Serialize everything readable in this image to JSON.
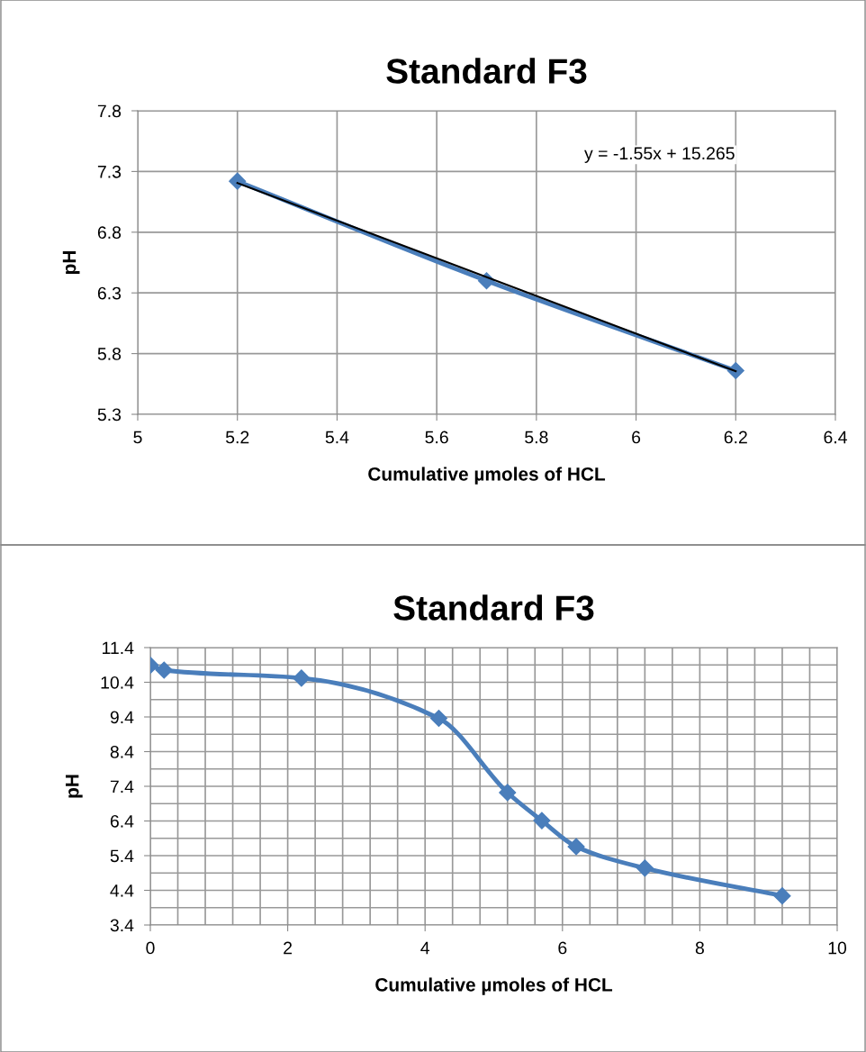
{
  "chart_data": [
    {
      "type": "line",
      "title": "Standard F3",
      "xlabel": "Cumulative µmoles of HCL",
      "ylabel": "pH",
      "x": [
        5.2,
        5.7,
        6.2
      ],
      "series": [
        {
          "color": "#4a7ebb",
          "values": [
            7.22,
            6.4,
            5.66
          ],
          "marker": "diamond"
        },
        {
          "type": "line",
          "color": "#000000",
          "x": [
            5.2,
            6.2
          ],
          "values": [
            7.205,
            5.655
          ],
          "marker": "none"
        }
      ],
      "annotations": [
        "y = -1.55x + 15.265"
      ],
      "xlim": [
        5,
        6.4
      ],
      "xticks": [
        5,
        5.2,
        5.4,
        5.6,
        5.8,
        6,
        6.2,
        6.4
      ],
      "ylim": [
        5.3,
        7.8
      ],
      "yticks": [
        5.3,
        5.8,
        6.3,
        6.8,
        7.3,
        7.8
      ],
      "grid": true,
      "legend": false
    },
    {
      "type": "line",
      "title": "Standard F3",
      "xlabel": "Cumulative µmoles of HCL",
      "ylabel": "pH",
      "x": [
        0,
        0.2,
        2.2,
        4.2,
        5.2,
        5.7,
        6.2,
        7.2,
        9.2
      ],
      "series": [
        {
          "color": "#4a7ebb",
          "values": [
            10.89,
            10.75,
            10.52,
            9.36,
            7.22,
            6.41,
            5.66,
            5.04,
            4.24
          ],
          "marker": "diamond"
        }
      ],
      "xlim": [
        0,
        10
      ],
      "xticks": [
        0,
        {
          "value": 0.4,
          "label": null
        },
        {
          "value": 0.8,
          "label": null
        },
        {
          "value": 1.2,
          "label": null
        },
        {
          "value": 1.6,
          "label": null
        },
        2,
        {
          "value": 2.4,
          "label": null
        },
        {
          "value": 2.8,
          "label": null
        },
        {
          "value": 3.2,
          "label": null
        },
        {
          "value": 3.6,
          "label": null
        },
        4,
        {
          "value": 4.4,
          "label": null
        },
        {
          "value": 4.8,
          "label": null
        },
        {
          "value": 5.2,
          "label": null
        },
        {
          "value": 5.6,
          "label": null
        },
        6,
        {
          "value": 6.4,
          "label": null
        },
        {
          "value": 6.8,
          "label": null
        },
        {
          "value": 7.2,
          "label": null
        },
        {
          "value": 7.6,
          "label": null
        },
        8,
        {
          "value": 8.4,
          "label": null
        },
        {
          "value": 8.8,
          "label": null
        },
        {
          "value": 9.2,
          "label": null
        },
        {
          "value": 9.6,
          "label": null
        },
        10
      ],
      "ylim": [
        3.4,
        11.4
      ],
      "yticks": [
        3.4,
        {
          "value": 3.9,
          "label": null
        },
        4.4,
        {
          "value": 4.9,
          "label": null
        },
        5.4,
        {
          "value": 5.9,
          "label": null
        },
        6.4,
        {
          "value": 6.9,
          "label": null
        },
        7.4,
        {
          "value": 7.9,
          "label": null
        },
        8.4,
        {
          "value": 8.9,
          "label": null
        },
        9.4,
        {
          "value": 9.9,
          "label": null
        },
        10.4,
        {
          "value": 10.9,
          "label": null
        },
        11.4
      ],
      "grid": true,
      "legend": false
    }
  ]
}
